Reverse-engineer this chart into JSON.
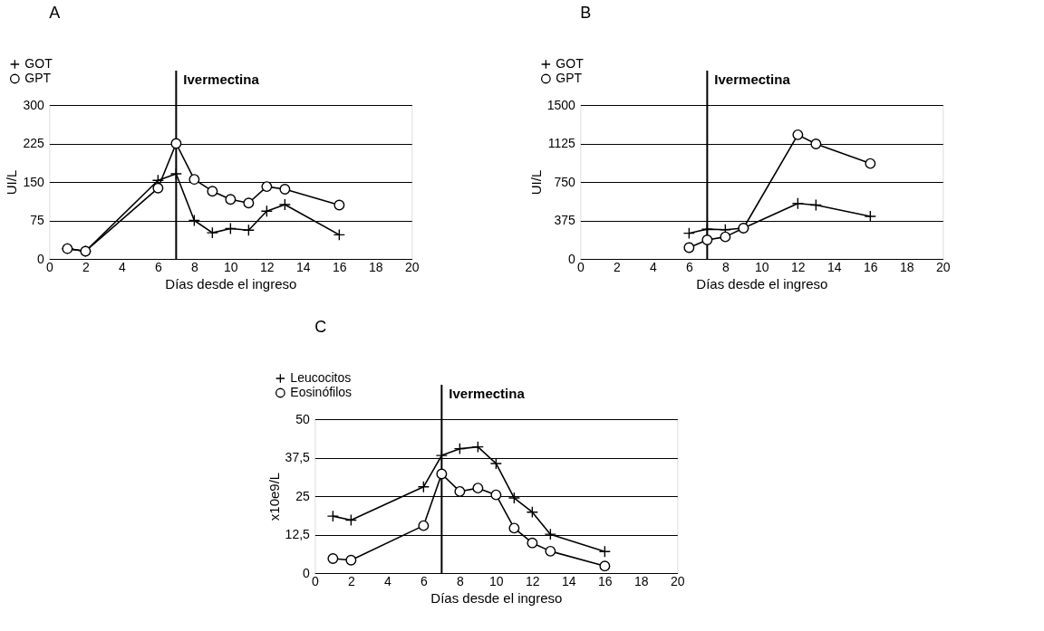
{
  "chart_data": [
    {
      "type": "line",
      "title": "A",
      "xlabel": "Días desde el ingreso",
      "ylabel": "UI/L",
      "x": [
        1,
        2,
        6,
        7,
        8,
        9,
        10,
        11,
        12,
        13,
        16
      ],
      "series": [
        {
          "name": "GOT",
          "color": "#000000",
          "marker": "cross",
          "values": [
            20,
            15,
            153,
            166,
            75,
            51,
            59,
            56,
            93,
            106,
            47
          ]
        },
        {
          "name": "GPT",
          "color": "#000000",
          "marker": "circle",
          "values": [
            20,
            15,
            138,
            225,
            155,
            132,
            116,
            109,
            141,
            136,
            105
          ]
        }
      ],
      "xlim": [
        0,
        20
      ],
      "xticks": [
        0,
        2,
        4,
        6,
        8,
        10,
        12,
        14,
        16,
        18,
        20
      ],
      "ylim": [
        0,
        300
      ],
      "yticks": [
        0,
        75,
        150,
        225,
        300
      ],
      "grid": "y",
      "legend": "top left",
      "ref_lines": [
        {
          "axis": "x",
          "value": 7,
          "label": "Ivermectina"
        }
      ]
    },
    {
      "type": "line",
      "title": "B",
      "xlabel": "Días desde el ingreso",
      "ylabel": "UI/L",
      "x": [
        6,
        7,
        8,
        9,
        12,
        13,
        16
      ],
      "series": [
        {
          "name": "GOT",
          "color": "#000000",
          "marker": "cross",
          "values": [
            250,
            290,
            285,
            300,
            540,
            525,
            415
          ]
        },
        {
          "name": "GPT",
          "color": "#000000",
          "marker": "circle",
          "values": [
            110,
            185,
            215,
            300,
            1210,
            1120,
            930
          ]
        }
      ],
      "xlim": [
        0,
        20
      ],
      "xticks": [
        0,
        2,
        4,
        6,
        8,
        10,
        12,
        14,
        16,
        18,
        20
      ],
      "ylim": [
        0,
        1500
      ],
      "yticks": [
        0,
        375,
        750,
        1125,
        1500
      ],
      "grid": "y",
      "legend": "top left",
      "ref_lines": [
        {
          "axis": "x",
          "value": 7,
          "label": "Ivermectina"
        }
      ]
    },
    {
      "type": "line",
      "title": "C",
      "xlabel": "Días desde el ingreso",
      "ylabel": "x10e9/L",
      "x": [
        1,
        2,
        6,
        7,
        8,
        9,
        10,
        11,
        12,
        13,
        16
      ],
      "series": [
        {
          "name": "Leucocitos",
          "color": "#000000",
          "marker": "cross",
          "values": [
            18.5,
            17.2,
            28.0,
            38.2,
            40.4,
            41.0,
            35.6,
            24.4,
            19.8,
            12.6,
            7.0
          ]
        },
        {
          "name": "Eosinófilos",
          "color": "#000000",
          "marker": "circle",
          "values": [
            4.7,
            4.2,
            15.4,
            32.2,
            26.5,
            27.6,
            25.4,
            14.6,
            9.8,
            7.1,
            2.3
          ]
        }
      ],
      "xlim": [
        0,
        20
      ],
      "xticks": [
        0,
        2,
        4,
        6,
        8,
        10,
        12,
        14,
        16,
        18,
        20
      ],
      "ylim": [
        0,
        50
      ],
      "yticks": [
        0,
        {
          "value": 12.5,
          "label": "12,5"
        },
        25,
        {
          "value": 37.5,
          "label": "37,5"
        },
        50
      ],
      "grid": "y",
      "legend": "top left",
      "ref_lines": [
        {
          "axis": "x",
          "value": 7,
          "label": "Ivermectina"
        }
      ]
    }
  ]
}
